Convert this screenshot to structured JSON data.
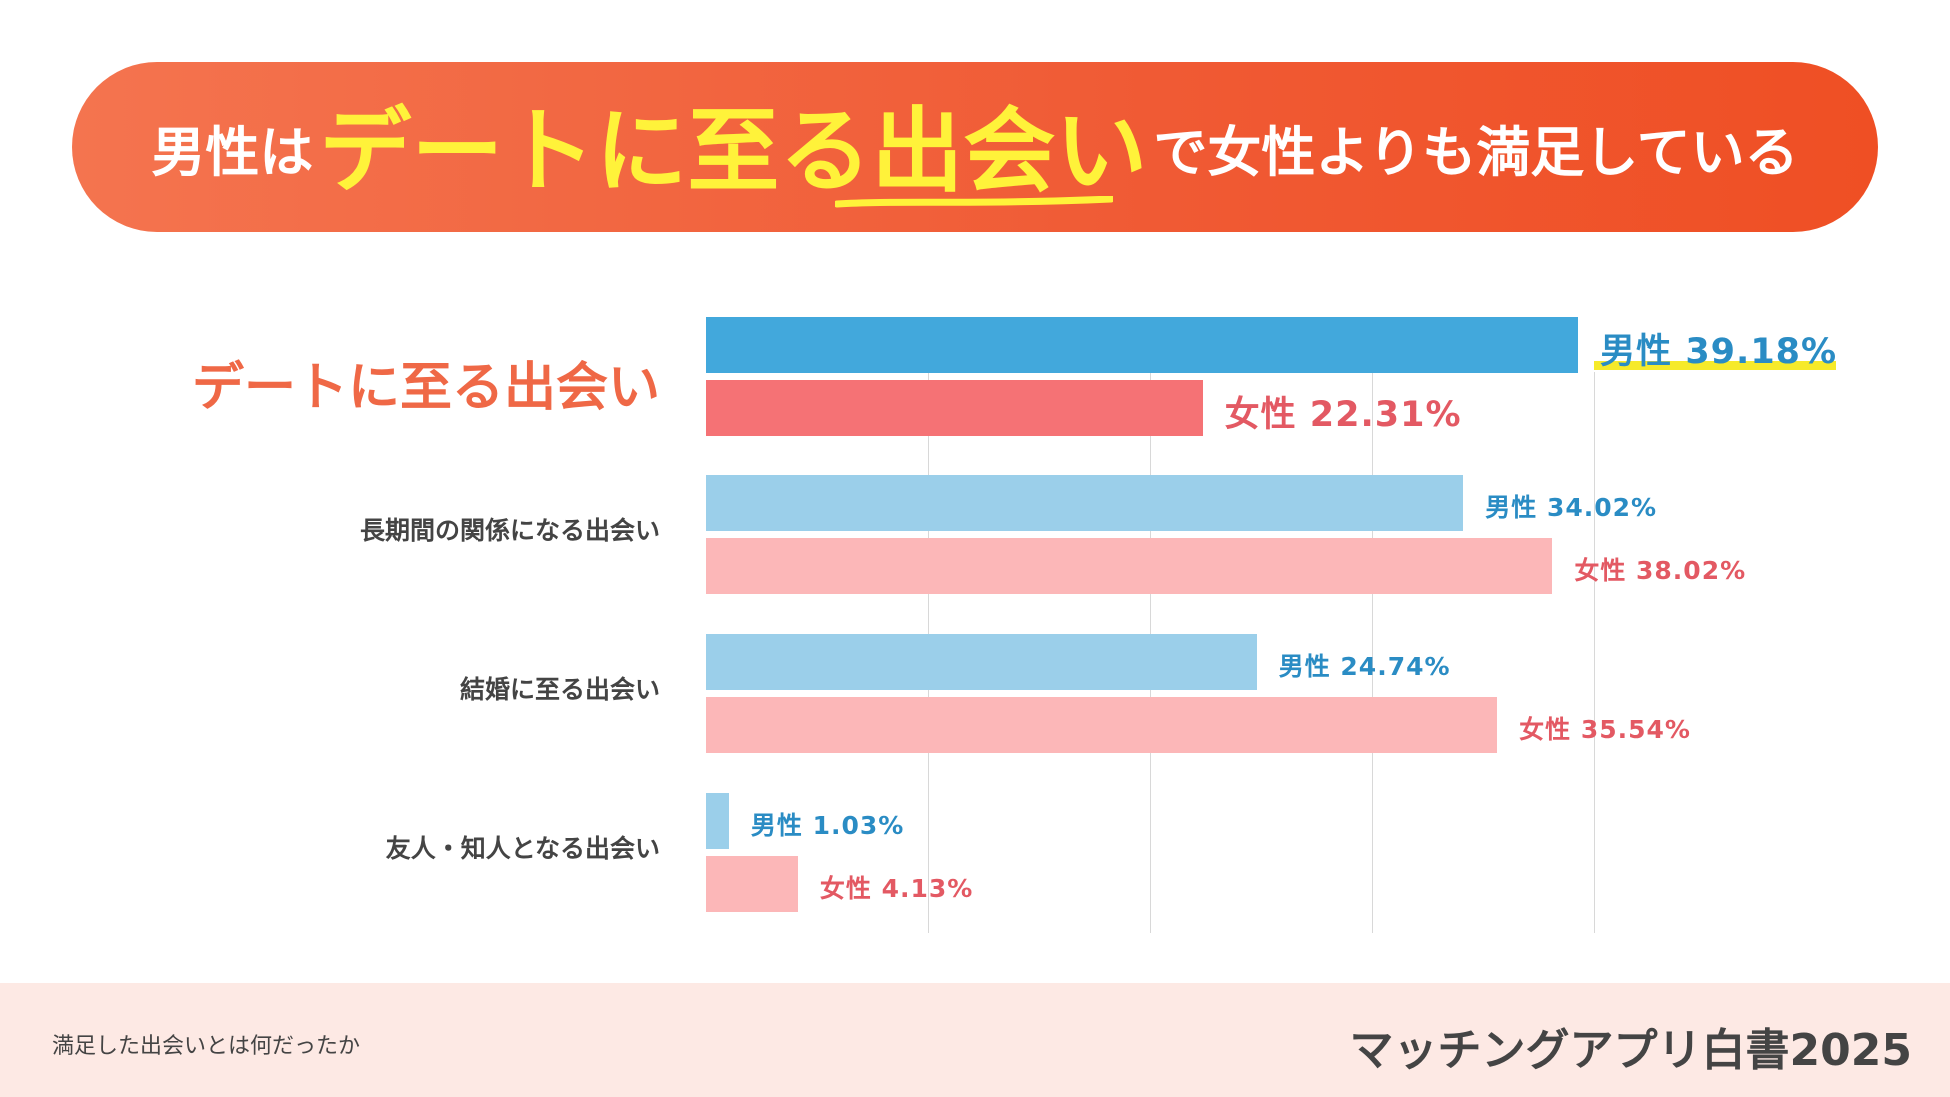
{
  "header": {
    "title_part1": "男性は",
    "title_highlight": "デートに至る出会い",
    "title_part2": "で女性よりも満足している"
  },
  "chart_data": {
    "type": "bar",
    "orientation": "horizontal",
    "categories": [
      "デートに至る出会い",
      "長期間の関係になる出会い",
      "結婚に至る出会い",
      "友人・知人となる出会い"
    ],
    "highlighted_category": "デートに至る出会い",
    "series": [
      {
        "name": "男性",
        "values": [
          39.18,
          34.02,
          24.74,
          1.03
        ]
      },
      {
        "name": "女性",
        "values": [
          22.31,
          38.02,
          35.54,
          4.13
        ]
      }
    ],
    "value_labels": {
      "男性": [
        "男性 39.18%",
        "男性 34.02%",
        "男性 24.74%",
        "男性 1.03%"
      ],
      "女性": [
        "女性 22.31%",
        "女性 38.02%",
        "女性 35.54%",
        "女性 4.13%"
      ]
    },
    "grid": true,
    "colors": {
      "male": "#42a8dc",
      "male_light": "#9bcfea",
      "female": "#f57275",
      "female_light": "#fcb7b8",
      "title_banner": "#f05a34",
      "title_highlight": "#fff23a"
    }
  },
  "footer": {
    "note": "満足した出会いとは何だったか",
    "brand": "マッチングアプリ白書2025"
  }
}
